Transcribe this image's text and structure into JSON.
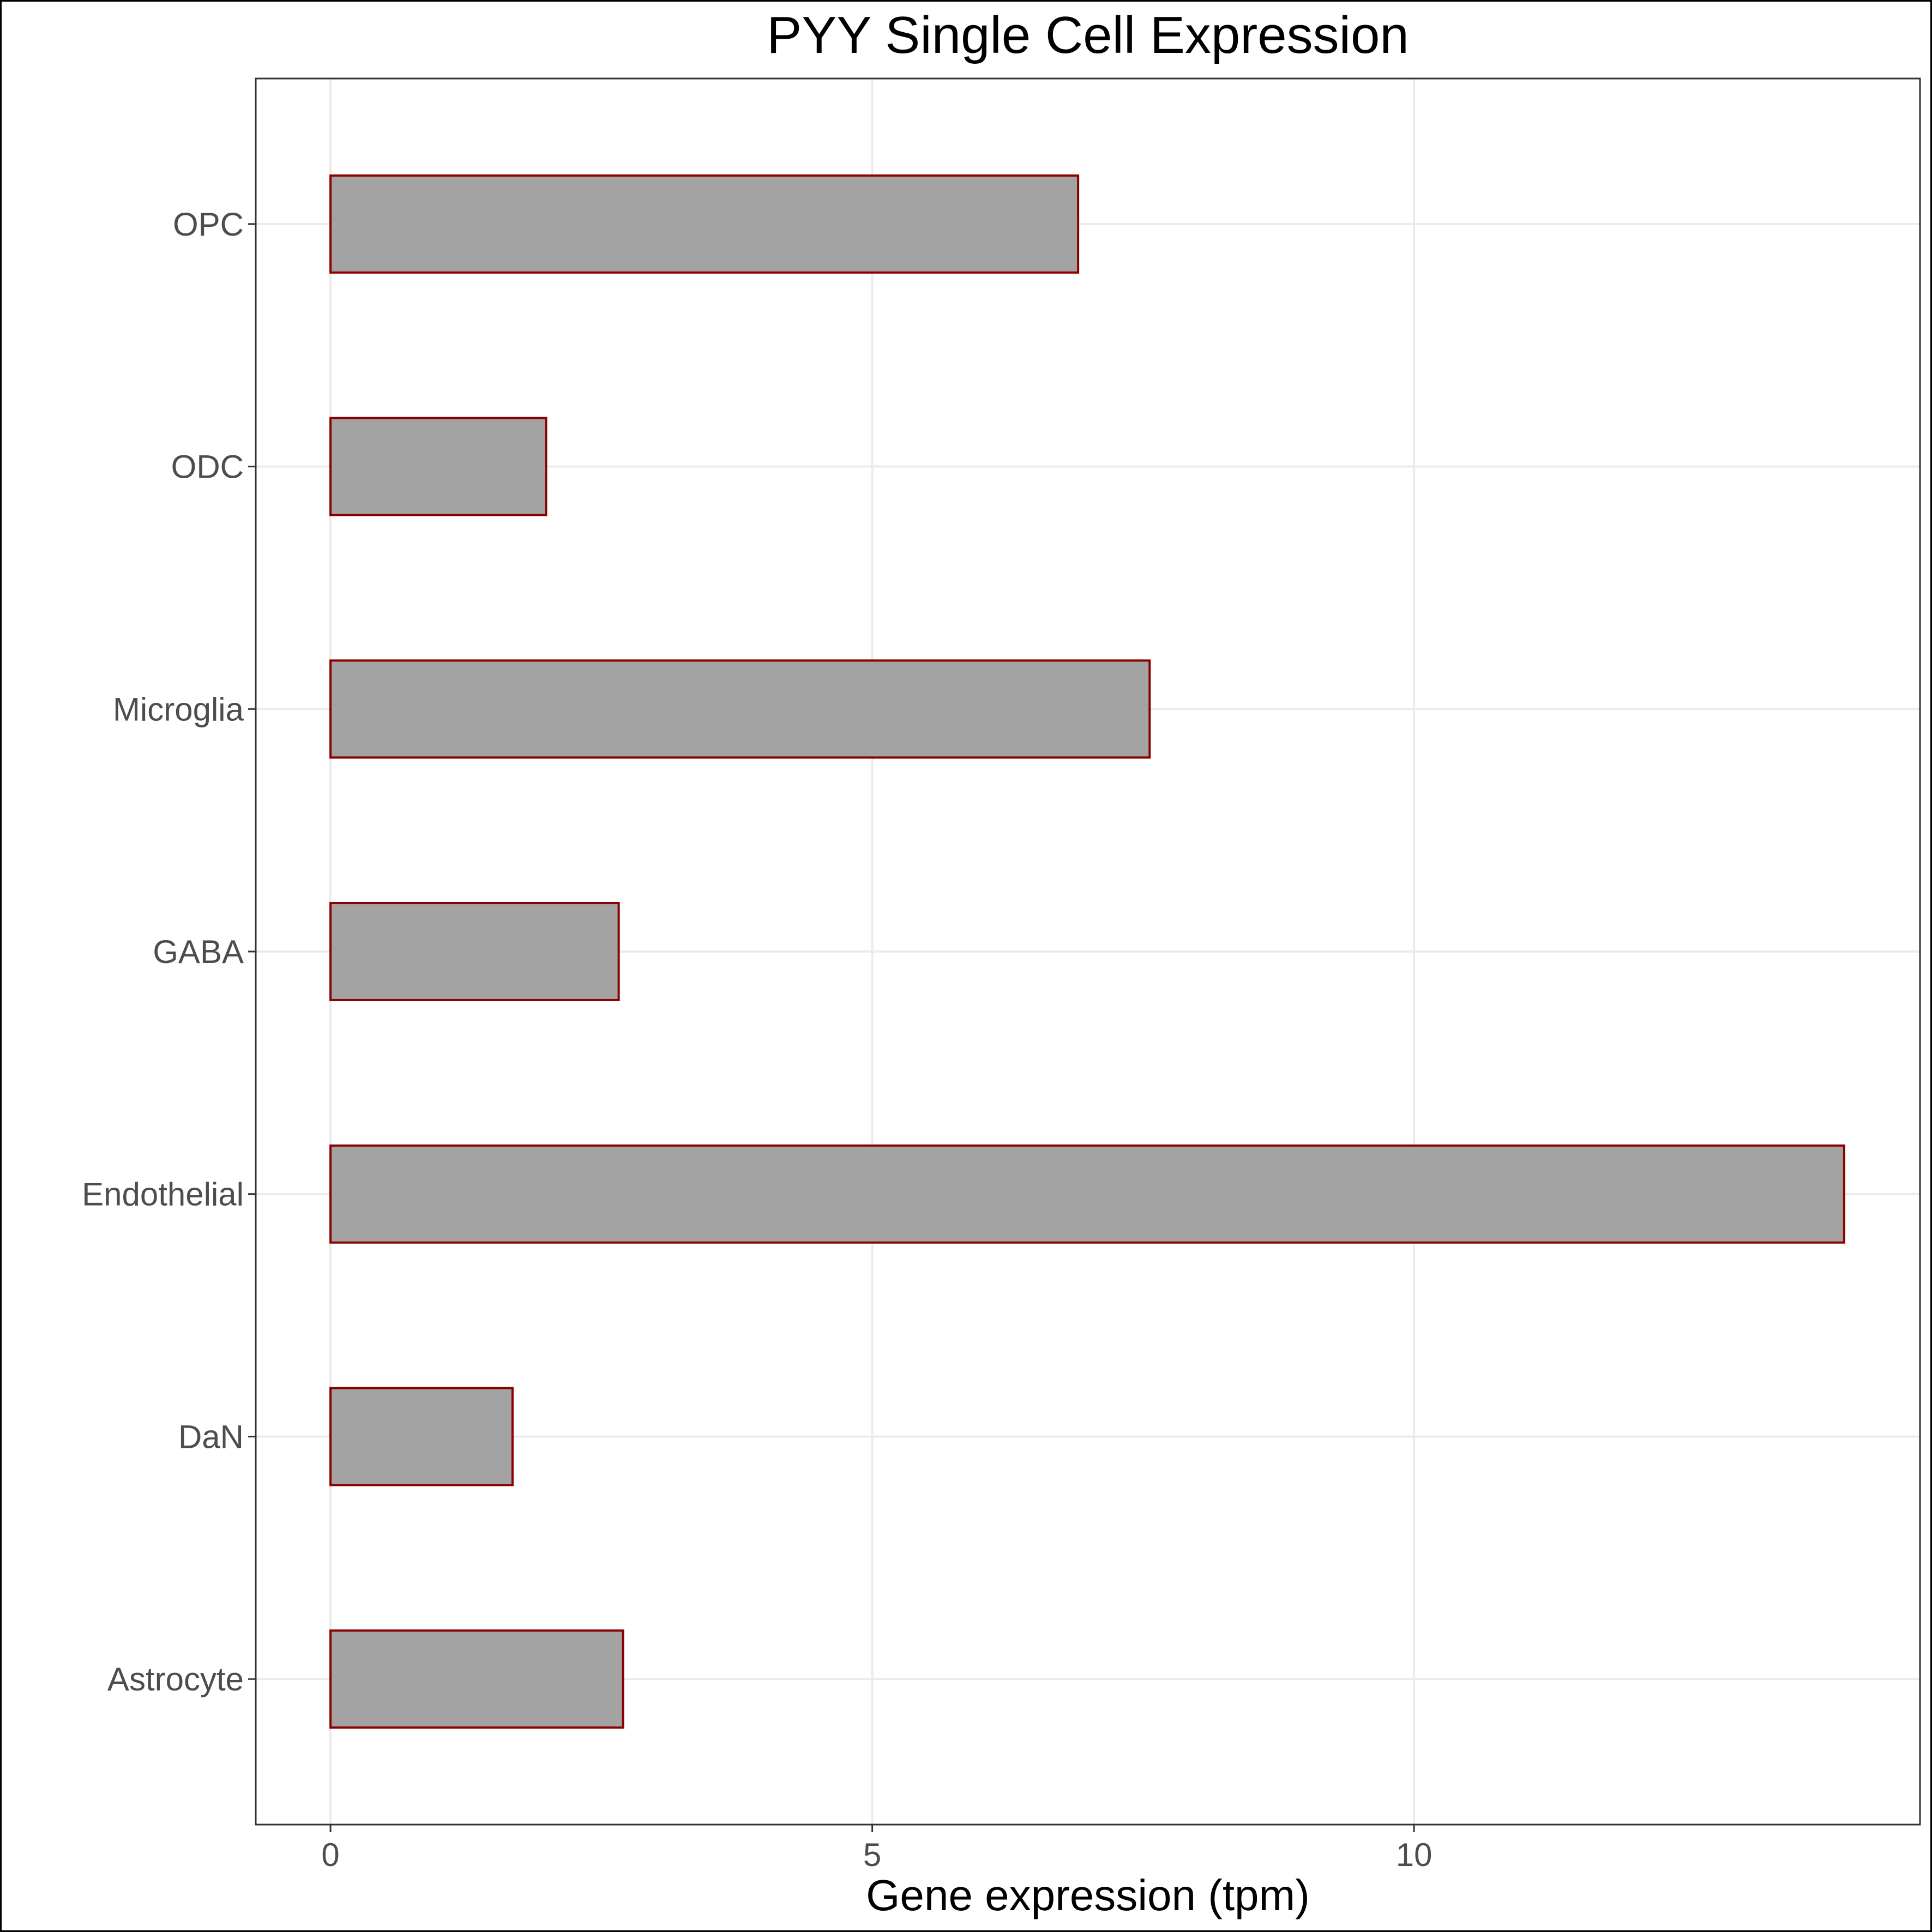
{
  "chart_data": {
    "type": "bar",
    "orientation": "horizontal",
    "title": "PYY Single Cell Expression",
    "xlabel": "Gene expression (tpm)",
    "ylabel": "",
    "categories": [
      "Astrocyte",
      "DaN",
      "Endothelial",
      "GABA",
      "Microglia",
      "ODC",
      "OPC"
    ],
    "values": [
      2.7,
      1.68,
      13.97,
      2.66,
      7.56,
      1.99,
      6.9
    ],
    "xlim": [
      -0.69,
      14.67
    ],
    "xticks": [
      0,
      5,
      10
    ],
    "grid": true,
    "legend": "none",
    "colors": {
      "bar_fill": "#a3a3a3",
      "bar_stroke": "#8b0000",
      "grid": "#ebebeb",
      "panel_border": "#333333",
      "tick_text": "#4d4d4d"
    }
  }
}
